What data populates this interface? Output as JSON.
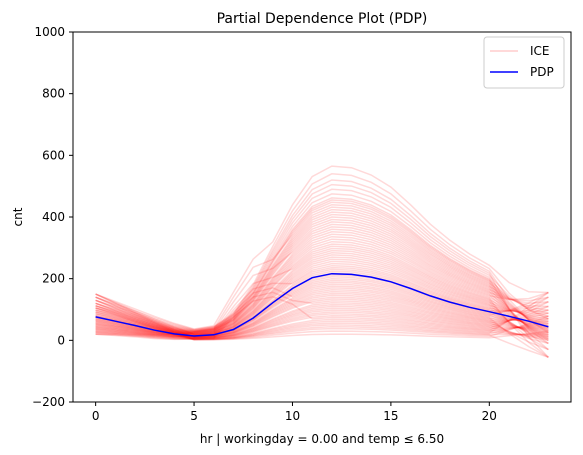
{
  "chart_data": {
    "type": "line",
    "title": "Partial Dependence Plot (PDP)",
    "xlabel": "hr | workingday = 0.00 and temp ≤ 6.50",
    "ylabel": "cnt",
    "xlim": [
      -1.15,
      24.15
    ],
    "ylim": [
      -200,
      1000
    ],
    "xticks": [
      0,
      5,
      10,
      15,
      20
    ],
    "yticks": [
      -200,
      0,
      200,
      400,
      600,
      800,
      1000
    ],
    "xtick_labels": [
      "0",
      "5",
      "10",
      "15",
      "20"
    ],
    "ytick_labels": [
      "−200",
      "0",
      "200",
      "400",
      "600",
      "800",
      "1000"
    ],
    "legend": {
      "placement": "top-right",
      "entries": [
        "ICE",
        "PDP"
      ]
    },
    "colors": {
      "ice": "#ff0000",
      "pdp": "#0000ff"
    },
    "x": [
      0,
      1,
      2,
      3,
      4,
      5,
      6,
      7,
      8,
      9,
      10,
      11,
      12,
      13,
      14,
      15,
      16,
      17,
      18,
      19,
      20,
      21,
      22,
      23
    ],
    "series": [
      {
        "name": "PDP",
        "values": [
          76,
          62,
          48,
          33,
          21,
          14,
          18,
          35,
          72,
          122,
          168,
          203,
          216,
          214,
          205,
          190,
          168,
          144,
          124,
          107,
          93,
          78,
          62,
          44
        ]
      },
      {
        "name": "ICE",
        "ice_peaks": [
          565,
          540,
          520,
          505,
          490,
          475,
          462,
          455,
          448,
          440,
          432,
          424,
          416,
          408,
          400,
          392,
          384,
          376,
          368,
          360,
          352,
          344,
          336,
          328,
          320,
          312,
          305,
          298,
          291,
          284,
          277,
          270,
          263,
          256,
          249,
          242,
          236,
          230,
          224,
          218,
          212,
          206,
          200,
          194,
          188,
          182,
          176,
          170,
          164,
          158,
          152,
          146,
          140,
          134,
          128,
          122,
          116,
          110,
          104,
          98,
          92,
          86,
          80,
          74,
          68,
          62,
          56,
          50,
          44,
          38,
          30,
          20
        ],
        "ice_starts": [
          150,
          140,
          130,
          120,
          112,
          105,
          98,
          92,
          86,
          80,
          75,
          70,
          65,
          60,
          55,
          50,
          45,
          40,
          35,
          30,
          25,
          20
        ],
        "ice_ends": [
          155,
          140,
          125,
          110,
          98,
          88,
          78,
          70,
          62,
          55,
          48,
          42,
          36,
          30,
          24,
          18,
          12,
          6,
          0,
          -10,
          -30,
          -55
        ],
        "ice_early_rise": [
          300,
          270,
          240,
          210,
          190,
          175,
          160,
          145
        ]
      }
    ]
  }
}
